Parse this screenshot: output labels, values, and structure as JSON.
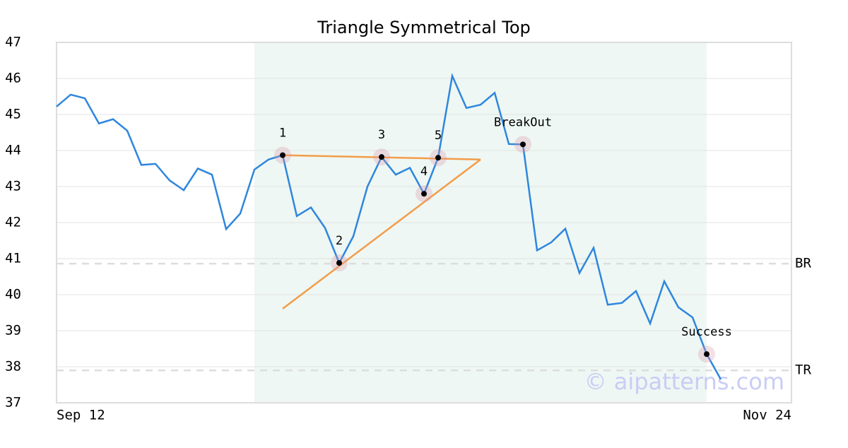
{
  "chart_data": {
    "type": "line",
    "title": "Triangle Symmetrical Top",
    "x": [
      0,
      1,
      2,
      3,
      4,
      5,
      6,
      7,
      8,
      9,
      10,
      11,
      12,
      13,
      14,
      15,
      16,
      17,
      18,
      19,
      20,
      21,
      22,
      23,
      24,
      25,
      26,
      27,
      28,
      29,
      30,
      31,
      32,
      33,
      34,
      35,
      36,
      37,
      38,
      39,
      40,
      41,
      42,
      43,
      44,
      45,
      46,
      47
    ],
    "series": [
      {
        "color": "#2e86de",
        "values": [
          45.22,
          45.55,
          45.45,
          44.75,
          44.87,
          44.55,
          43.6,
          43.63,
          43.17,
          42.9,
          43.5,
          43.33,
          41.82,
          42.25,
          43.47,
          43.75,
          43.87,
          42.18,
          42.42,
          41.85,
          40.88,
          41.62,
          43.0,
          43.82,
          43.33,
          43.52,
          42.8,
          43.8,
          46.07,
          45.18,
          45.27,
          45.6,
          44.18,
          44.17,
          41.23,
          41.45,
          41.83,
          40.6,
          41.3,
          39.72,
          39.77,
          40.1,
          39.2,
          40.37,
          39.65,
          39.37,
          38.35,
          37.65
        ]
      }
    ],
    "xlim": [
      0,
      52
    ],
    "xticks": [
      {
        "value": 0,
        "label": "Sep 12"
      },
      {
        "value": 52,
        "label": "Nov 24"
      }
    ],
    "ylim": [
      37,
      47
    ],
    "yticks": [
      37,
      38,
      39,
      40,
      41,
      42,
      43,
      44,
      45,
      46,
      47
    ],
    "grid": true,
    "highlight_x": [
      14,
      46
    ],
    "highlight_color": "#eef7f3",
    "annotations": [
      {
        "label": "1",
        "x": 16,
        "y": 43.87
      },
      {
        "label": "2",
        "x": 20,
        "y": 40.88
      },
      {
        "label": "3",
        "x": 23,
        "y": 43.82
      },
      {
        "label": "4",
        "x": 26,
        "y": 42.8
      },
      {
        "label": "5",
        "x": 27,
        "y": 43.8
      },
      {
        "label": "BreakOut",
        "x": 33,
        "y": 44.17
      },
      {
        "label": "Success",
        "x": 46,
        "y": 38.35
      }
    ],
    "trend_lines": [
      {
        "color": "#f39c4a",
        "x": [
          16,
          30
        ],
        "y": [
          43.87,
          43.75
        ]
      },
      {
        "color": "#f39c4a",
        "x": [
          16,
          30
        ],
        "y": [
          39.61,
          43.75
        ]
      }
    ],
    "levels": [
      {
        "label": "BR",
        "value": 40.86
      },
      {
        "label": "TR",
        "value": 37.9
      }
    ],
    "watermark": "© aipatterns.com"
  }
}
